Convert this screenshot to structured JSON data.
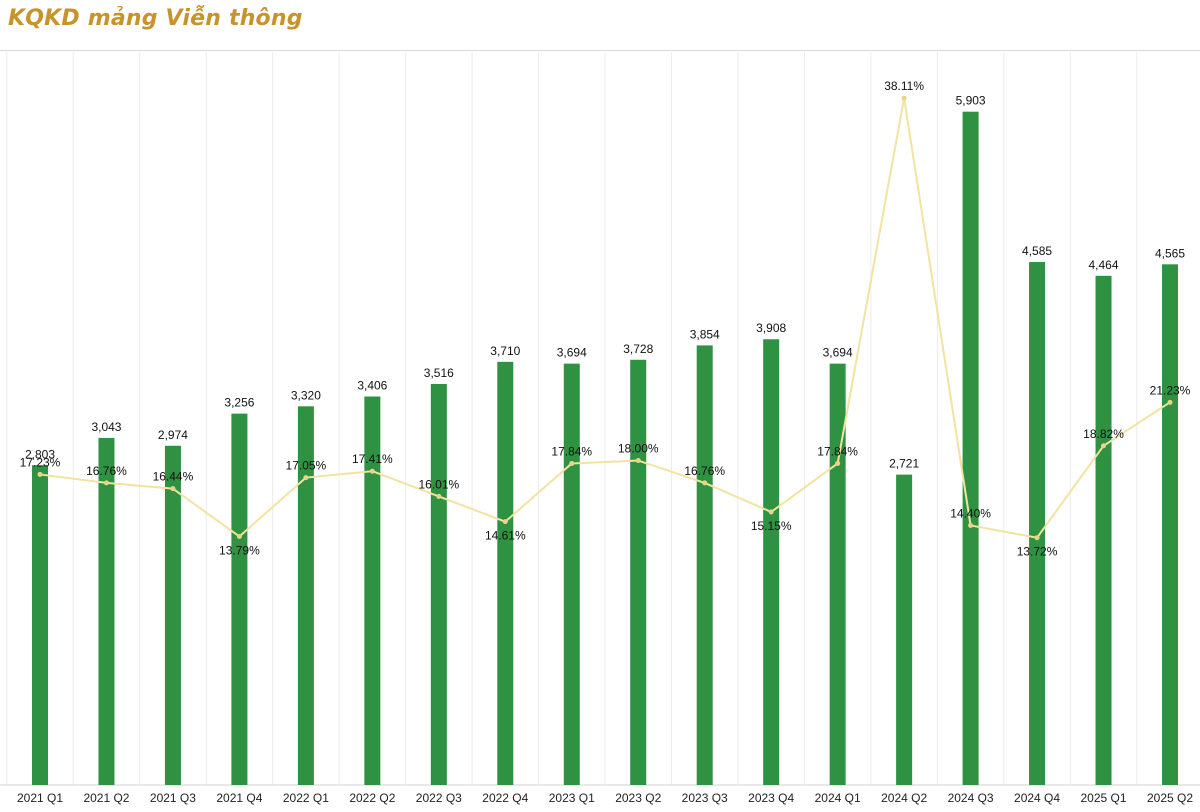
{
  "title": "KQKD mảng Viễn thông",
  "colors": {
    "bar": "#2f9142",
    "line": "#f2e3a0",
    "title": "#c8932a",
    "grid": "#ececec"
  },
  "chart_data": {
    "type": "bar",
    "categories": [
      "2021 Q1",
      "2021 Q2",
      "2021 Q3",
      "2021 Q4",
      "2022 Q1",
      "2022 Q2",
      "2022 Q3",
      "2022 Q4",
      "2023 Q1",
      "2023 Q2",
      "2023 Q3",
      "2023 Q4",
      "2024 Q1",
      "2024 Q2",
      "2024 Q3",
      "2024 Q4",
      "2025 Q1",
      "2025 Q2"
    ],
    "series": [
      {
        "type": "bar",
        "values": [
          2803,
          3043,
          2974,
          3256,
          3320,
          3406,
          3516,
          3710,
          3694,
          3728,
          3854,
          3908,
          3694,
          2721,
          5903,
          4585,
          4464,
          4565
        ],
        "labels": [
          "2,803",
          "3,043",
          "2,974",
          "3,256",
          "3,320",
          "3,406",
          "3,516",
          "3,710",
          "3,694",
          "3,728",
          "3,854",
          "3,908",
          "3,694",
          "2,721",
          "5,903",
          "4,585",
          "4,464",
          "4,565"
        ]
      },
      {
        "type": "line",
        "values": [
          17.23,
          16.76,
          16.44,
          13.79,
          17.05,
          17.41,
          16.01,
          14.61,
          17.84,
          18.0,
          16.76,
          15.15,
          17.84,
          38.11,
          14.4,
          13.72,
          18.82,
          21.23
        ],
        "labels": [
          "17.23%",
          "16.76%",
          "16.44%",
          "13.79%",
          "17.05%",
          "17.41%",
          "16.01%",
          "14.61%",
          "17.84%",
          "18.00%",
          "16.76%",
          "15.15%",
          "17.84%",
          "38.11%",
          "14.40%",
          "13.72%",
          "18.82%",
          "21.23%"
        ]
      }
    ],
    "ylim_bar": [
      0,
      6400
    ],
    "ylim_line": [
      0,
      40.5
    ],
    "grid": true
  }
}
